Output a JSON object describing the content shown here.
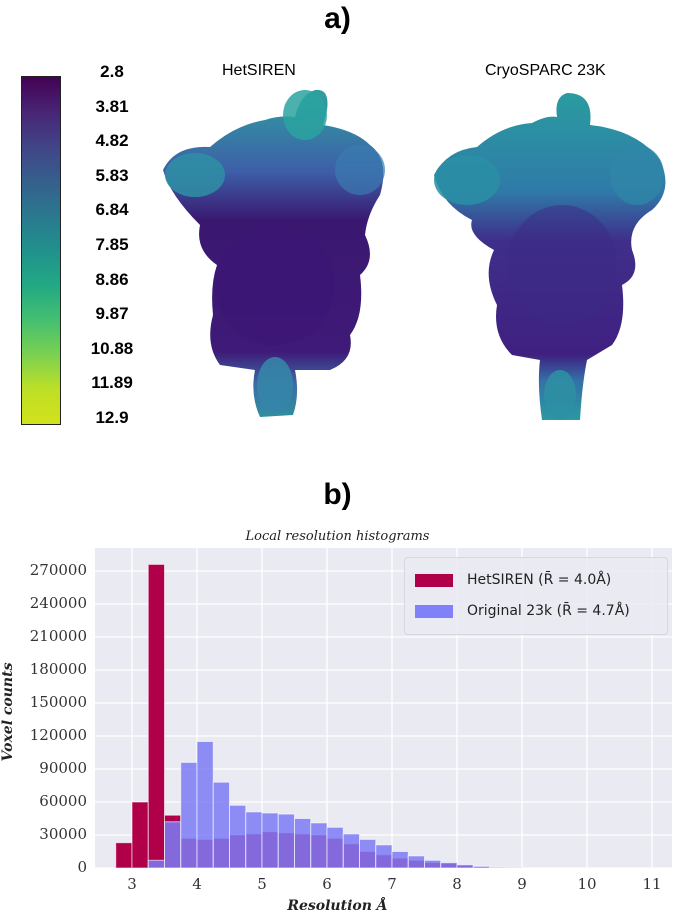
{
  "panel_a": {
    "label": "a)",
    "left_title": "HetSIREN",
    "right_title": "CryoSPARC 23K",
    "colorbar": {
      "colormap": "viridis",
      "ticks": [
        "2.8",
        "3.81",
        "4.82",
        "5.83",
        "6.84",
        "7.85",
        "8.86",
        "9.87",
        "10.88",
        "11.89",
        "12.9"
      ]
    }
  },
  "panel_b": {
    "label": "b)"
  },
  "chart_data": {
    "type": "bar",
    "title": "Local resolution histograms",
    "xlabel": "Resolution Å",
    "ylabel": "Voxel counts",
    "xlim": [
      2.6,
      11.3
    ],
    "ylim": [
      0,
      290000
    ],
    "xticks": [
      "3",
      "4",
      "5",
      "6",
      "7",
      "8",
      "9",
      "10",
      "11"
    ],
    "yticks": [
      "0",
      "30000",
      "60000",
      "90000",
      "120000",
      "150000",
      "180000",
      "210000",
      "240000",
      "270000"
    ],
    "grid": true,
    "legend_position": "upper right",
    "bin_width": 0.25,
    "bin_starts": [
      2.75,
      3.0,
      3.25,
      3.5,
      3.75,
      4.0,
      4.25,
      4.5,
      4.75,
      5.0,
      5.25,
      5.5,
      5.75,
      6.0,
      6.25,
      6.5,
      6.75,
      7.0,
      7.25,
      7.5,
      7.75,
      8.0,
      8.25,
      8.5,
      8.75
    ],
    "series": [
      {
        "name": "HetSIREN (R̄ = 4.0Å)",
        "color": "#b0004a",
        "values": [
          23000,
          60000,
          276000,
          48000,
          27000,
          26000,
          27000,
          30000,
          31000,
          33000,
          32000,
          31000,
          30000,
          27000,
          22000,
          15000,
          12000,
          9000,
          7000,
          5000,
          4000,
          2500,
          1500,
          600,
          200
        ]
      },
      {
        "name": "Original 23k (R̄ = 4.7Å)",
        "color": "#7b7bf5",
        "values": [
          0,
          0,
          7000,
          42000,
          96000,
          115000,
          78000,
          57000,
          51000,
          50000,
          49000,
          45000,
          41000,
          37000,
          31000,
          26000,
          21000,
          15000,
          11000,
          7000,
          5000,
          3000,
          1500,
          600,
          300
        ]
      }
    ]
  }
}
